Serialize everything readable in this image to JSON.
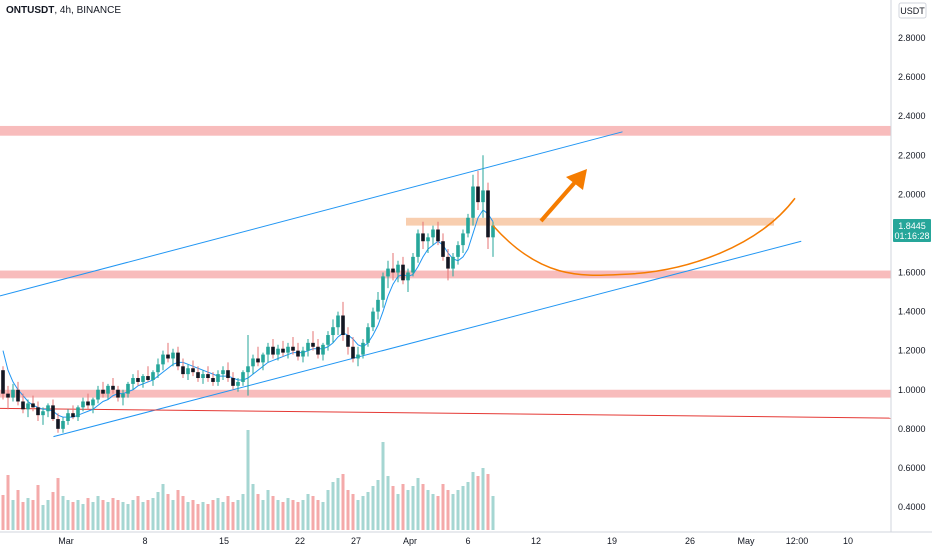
{
  "header": {
    "symbol": "ONTUSDT",
    "interval": "4h",
    "exchange": "BINANCE",
    "currency_badge": "USDT"
  },
  "price_tag": {
    "value": "1.8445",
    "countdown": "01:16:28",
    "color": "#26a69a"
  },
  "colors": {
    "up": "#26a69a",
    "down": "#131722",
    "zone": "#f7b0b0",
    "zone_orange": "#f7c9a6",
    "channel": "#2196f3",
    "ma": "#2196f3",
    "arrow": "#f57c00",
    "trend_red": "#e53935",
    "volume_up": "#a5d6d2",
    "volume_down": "#f4aaaa"
  },
  "chart_data": {
    "type": "candlestick",
    "price_axis": {
      "min": 0.3,
      "max": 2.9,
      "ticks": [
        "2.8000",
        "2.6000",
        "2.4000",
        "2.2000",
        "2.0000",
        "1.8000",
        "1.6000",
        "1.4000",
        "1.2000",
        "1.0000",
        "0.8000",
        "0.6000",
        "0.4000"
      ]
    },
    "time_axis": {
      "labels": [
        "Mar",
        "8",
        "15",
        "22",
        "27",
        "Apr",
        "6",
        "12",
        "19",
        "26",
        "May",
        "12:00",
        "10"
      ]
    },
    "last_price": 1.8445,
    "support_resistance_zones": [
      {
        "price_low": 2.3,
        "price_high": 2.35
      },
      {
        "price_low": 1.57,
        "price_high": 1.61
      },
      {
        "price_low": 0.96,
        "price_high": 1.0
      }
    ],
    "highlight_zone": {
      "price_low": 1.84,
      "price_high": 1.88
    },
    "channel": {
      "upper": [
        {
          "t": 0.0,
          "price": 1.48
        },
        {
          "t": 0.665,
          "price": 2.32
        }
      ],
      "lower": [
        {
          "t": 0.06,
          "price": 0.76
        },
        {
          "t": 0.86,
          "price": 1.76
        }
      ]
    },
    "trendline": [
      {
        "t": 0.0,
        "price": 0.905
      },
      {
        "t": 1.0,
        "price": 0.855
      }
    ],
    "projection_curve": {
      "start_price": 1.84,
      "bottom_price": 1.59,
      "end_price": 1.98
    },
    "candles": [
      [
        1.1,
        1.12,
        0.95,
        0.98
      ],
      [
        0.98,
        1.02,
        0.9,
        0.96
      ],
      [
        0.96,
        1.03,
        0.94,
        1.0
      ],
      [
        1.0,
        1.04,
        0.92,
        0.94
      ],
      [
        0.94,
        0.98,
        0.88,
        0.9
      ],
      [
        0.9,
        0.95,
        0.86,
        0.93
      ],
      [
        0.93,
        0.97,
        0.89,
        0.91
      ],
      [
        0.91,
        0.94,
        0.84,
        0.87
      ],
      [
        0.87,
        0.91,
        0.82,
        0.89
      ],
      [
        0.89,
        0.93,
        0.86,
        0.92
      ],
      [
        0.92,
        0.95,
        0.84,
        0.85
      ],
      [
        0.85,
        0.88,
        0.78,
        0.8
      ],
      [
        0.8,
        0.86,
        0.78,
        0.84
      ],
      [
        0.84,
        0.9,
        0.82,
        0.88
      ],
      [
        0.88,
        0.92,
        0.85,
        0.86
      ],
      [
        0.86,
        0.92,
        0.84,
        0.91
      ],
      [
        0.91,
        0.96,
        0.89,
        0.94
      ],
      [
        0.94,
        0.98,
        0.9,
        0.92
      ],
      [
        0.92,
        0.96,
        0.88,
        0.95
      ],
      [
        0.95,
        1.02,
        0.93,
        1.0
      ],
      [
        1.0,
        1.04,
        0.96,
        0.98
      ],
      [
        0.98,
        1.03,
        0.95,
        1.02
      ],
      [
        1.02,
        1.06,
        0.98,
        1.0
      ],
      [
        1.0,
        1.02,
        0.94,
        0.96
      ],
      [
        0.96,
        1.0,
        0.92,
        0.98
      ],
      [
        0.98,
        1.04,
        0.96,
        1.03
      ],
      [
        1.03,
        1.08,
        1.0,
        1.06
      ],
      [
        1.06,
        1.1,
        1.02,
        1.04
      ],
      [
        1.04,
        1.08,
        1.01,
        1.07
      ],
      [
        1.07,
        1.12,
        1.04,
        1.05
      ],
      [
        1.05,
        1.1,
        1.02,
        1.09
      ],
      [
        1.09,
        1.16,
        1.06,
        1.13
      ],
      [
        1.13,
        1.2,
        1.1,
        1.18
      ],
      [
        1.18,
        1.24,
        1.14,
        1.16
      ],
      [
        1.16,
        1.21,
        1.12,
        1.19
      ],
      [
        1.19,
        1.22,
        1.1,
        1.12
      ],
      [
        1.12,
        1.16,
        1.06,
        1.08
      ],
      [
        1.08,
        1.13,
        1.05,
        1.11
      ],
      [
        1.11,
        1.15,
        1.07,
        1.09
      ],
      [
        1.09,
        1.12,
        1.04,
        1.06
      ],
      [
        1.06,
        1.1,
        1.03,
        1.08
      ],
      [
        1.08,
        1.12,
        1.04,
        1.06
      ],
      [
        1.06,
        1.09,
        1.02,
        1.04
      ],
      [
        1.04,
        1.1,
        1.02,
        1.08
      ],
      [
        1.08,
        1.12,
        1.05,
        1.1
      ],
      [
        1.1,
        1.14,
        1.04,
        1.06
      ],
      [
        1.06,
        1.09,
        1.0,
        1.02
      ],
      [
        1.02,
        1.06,
        0.99,
        1.04
      ],
      [
        1.04,
        1.1,
        1.02,
        1.09
      ],
      [
        1.09,
        1.28,
        0.97,
        1.12
      ],
      [
        1.12,
        1.18,
        1.08,
        1.16
      ],
      [
        1.16,
        1.22,
        1.12,
        1.14
      ],
      [
        1.14,
        1.19,
        1.1,
        1.18
      ],
      [
        1.18,
        1.24,
        1.14,
        1.22
      ],
      [
        1.22,
        1.26,
        1.16,
        1.18
      ],
      [
        1.18,
        1.23,
        1.15,
        1.21
      ],
      [
        1.21,
        1.25,
        1.17,
        1.19
      ],
      [
        1.19,
        1.24,
        1.16,
        1.22
      ],
      [
        1.22,
        1.27,
        1.18,
        1.2
      ],
      [
        1.2,
        1.24,
        1.15,
        1.17
      ],
      [
        1.17,
        1.22,
        1.14,
        1.2
      ],
      [
        1.2,
        1.26,
        1.17,
        1.24
      ],
      [
        1.24,
        1.3,
        1.2,
        1.22
      ],
      [
        1.22,
        1.26,
        1.16,
        1.18
      ],
      [
        1.18,
        1.24,
        1.15,
        1.23
      ],
      [
        1.23,
        1.3,
        1.2,
        1.28
      ],
      [
        1.28,
        1.36,
        1.24,
        1.32
      ],
      [
        1.32,
        1.4,
        1.28,
        1.38
      ],
      [
        1.38,
        1.45,
        1.25,
        1.28
      ],
      [
        1.28,
        1.32,
        1.18,
        1.22
      ],
      [
        1.22,
        1.27,
        1.14,
        1.16
      ],
      [
        1.16,
        1.22,
        1.12,
        1.18
      ],
      [
        1.18,
        1.26,
        1.16,
        1.24
      ],
      [
        1.24,
        1.34,
        1.22,
        1.32
      ],
      [
        1.32,
        1.42,
        1.3,
        1.4
      ],
      [
        1.4,
        1.5,
        1.36,
        1.46
      ],
      [
        1.46,
        1.6,
        1.42,
        1.58
      ],
      [
        1.58,
        1.66,
        1.52,
        1.62
      ],
      [
        1.62,
        1.7,
        1.56,
        1.6
      ],
      [
        1.6,
        1.66,
        1.55,
        1.64
      ],
      [
        1.64,
        1.68,
        1.54,
        1.56
      ],
      [
        1.56,
        1.62,
        1.5,
        1.6
      ],
      [
        1.6,
        1.7,
        1.58,
        1.68
      ],
      [
        1.68,
        1.82,
        1.65,
        1.8
      ],
      [
        1.8,
        1.86,
        1.72,
        1.76
      ],
      [
        1.76,
        1.8,
        1.7,
        1.78
      ],
      [
        1.78,
        1.84,
        1.74,
        1.82
      ],
      [
        1.82,
        1.86,
        1.74,
        1.76
      ],
      [
        1.76,
        1.8,
        1.66,
        1.68
      ],
      [
        1.68,
        1.72,
        1.56,
        1.62
      ],
      [
        1.62,
        1.7,
        1.58,
        1.68
      ],
      [
        1.68,
        1.76,
        1.64,
        1.74
      ],
      [
        1.74,
        1.82,
        1.7,
        1.8
      ],
      [
        1.8,
        1.9,
        1.78,
        1.88
      ],
      [
        1.88,
        2.1,
        1.84,
        2.04
      ],
      [
        2.04,
        2.12,
        1.92,
        1.96
      ],
      [
        1.96,
        2.2,
        1.88,
        2.02
      ],
      [
        2.02,
        2.06,
        1.72,
        1.78
      ],
      [
        1.78,
        1.86,
        1.68,
        1.84
      ]
    ],
    "moving_average": [
      1.2,
      1.1,
      1.04,
      1.0,
      0.97,
      0.94,
      0.92,
      0.91,
      0.9,
      0.9,
      0.89,
      0.87,
      0.86,
      0.86,
      0.86,
      0.87,
      0.88,
      0.89,
      0.9,
      0.92,
      0.94,
      0.95,
      0.97,
      0.98,
      0.98,
      0.99,
      1.0,
      1.02,
      1.03,
      1.04,
      1.05,
      1.07,
      1.09,
      1.11,
      1.13,
      1.14,
      1.14,
      1.13,
      1.12,
      1.11,
      1.1,
      1.09,
      1.08,
      1.07,
      1.07,
      1.07,
      1.06,
      1.05,
      1.05,
      1.06,
      1.08,
      1.1,
      1.12,
      1.14,
      1.15,
      1.16,
      1.17,
      1.18,
      1.19,
      1.19,
      1.19,
      1.2,
      1.21,
      1.21,
      1.21,
      1.22,
      1.24,
      1.27,
      1.29,
      1.28,
      1.26,
      1.23,
      1.22,
      1.24,
      1.28,
      1.33,
      1.4,
      1.48,
      1.54,
      1.58,
      1.59,
      1.58,
      1.59,
      1.63,
      1.68,
      1.72,
      1.74,
      1.76,
      1.74,
      1.7,
      1.67,
      1.66,
      1.68,
      1.72,
      1.8,
      1.88,
      1.92,
      1.9,
      1.86
    ],
    "volumes": [
      0.35,
      0.55,
      0.3,
      0.4,
      0.28,
      0.32,
      0.3,
      0.45,
      0.25,
      0.3,
      0.38,
      0.52,
      0.34,
      0.3,
      0.28,
      0.3,
      0.26,
      0.32,
      0.28,
      0.34,
      0.3,
      0.28,
      0.32,
      0.3,
      0.28,
      0.26,
      0.3,
      0.34,
      0.28,
      0.3,
      0.32,
      0.38,
      0.46,
      0.36,
      0.3,
      0.4,
      0.34,
      0.28,
      0.3,
      0.26,
      0.28,
      0.26,
      0.3,
      0.32,
      0.28,
      0.34,
      0.28,
      0.3,
      0.36,
      1.0,
      0.46,
      0.36,
      0.3,
      0.4,
      0.34,
      0.3,
      0.28,
      0.32,
      0.3,
      0.28,
      0.3,
      0.36,
      0.34,
      0.3,
      0.28,
      0.4,
      0.48,
      0.52,
      0.56,
      0.4,
      0.36,
      0.3,
      0.34,
      0.38,
      0.44,
      0.5,
      0.88,
      0.54,
      0.44,
      0.36,
      0.46,
      0.4,
      0.44,
      0.52,
      0.46,
      0.4,
      0.36,
      0.34,
      0.46,
      0.4,
      0.36,
      0.4,
      0.44,
      0.48,
      0.58,
      0.54,
      0.62,
      0.56,
      0.34
    ]
  }
}
